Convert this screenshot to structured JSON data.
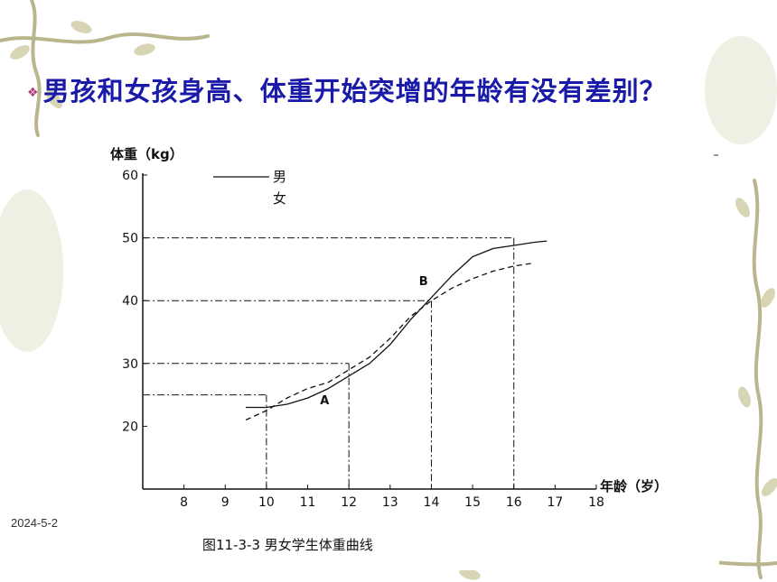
{
  "slide": {
    "question": "男孩和女孩身高、体重开始突增的年龄有没有差别？",
    "bullet_icon": "diamond-bullet-icon",
    "date": "2024-5-2"
  },
  "chart_data": {
    "type": "line",
    "title": "",
    "caption": "图11-3-3  男女学生体重曲线",
    "ylabel": "体重（kg）",
    "xlabel": "年龄（岁）",
    "xlim": [
      7,
      18
    ],
    "ylim": [
      10,
      60
    ],
    "x_ticks": [
      8,
      9,
      10,
      11,
      12,
      13,
      14,
      15,
      16,
      17,
      18
    ],
    "y_ticks": [
      20,
      30,
      40,
      50,
      60
    ],
    "legend": {
      "placement": "top-left",
      "entries": [
        "男",
        "女"
      ]
    },
    "series": [
      {
        "name": "男",
        "style": "solid",
        "points": [
          [
            9.5,
            23
          ],
          [
            10,
            23
          ],
          [
            10.5,
            23.5
          ],
          [
            11,
            24.5
          ],
          [
            11.5,
            26
          ],
          [
            12,
            28
          ],
          [
            12.5,
            30
          ],
          [
            13,
            33
          ],
          [
            13.5,
            37
          ],
          [
            14,
            40.5
          ],
          [
            14.5,
            44
          ],
          [
            15,
            47
          ],
          [
            15.5,
            48.3
          ],
          [
            16,
            48.8
          ],
          [
            16.5,
            49.3
          ],
          [
            16.8,
            49.5
          ]
        ]
      },
      {
        "name": "女",
        "style": "dashed",
        "points": [
          [
            9.5,
            21
          ],
          [
            10,
            22.5
          ],
          [
            10.5,
            24.5
          ],
          [
            11,
            26
          ],
          [
            11.5,
            27
          ],
          [
            12,
            29
          ],
          [
            12.5,
            31
          ],
          [
            13,
            34
          ],
          [
            13.5,
            37.5
          ],
          [
            14,
            40
          ],
          [
            14.5,
            42
          ],
          [
            15,
            43.5
          ],
          [
            15.5,
            44.7
          ],
          [
            16,
            45.5
          ],
          [
            16.5,
            46
          ]
        ]
      }
    ],
    "annotations": [
      {
        "label": "A",
        "x": 11.3,
        "y": 23.5
      },
      {
        "label": "B",
        "x": 13.7,
        "y": 42.5
      }
    ],
    "reference_lines": [
      {
        "x": 10,
        "y": 25
      },
      {
        "x": 12,
        "y": 30
      },
      {
        "x": 14,
        "y": 40
      },
      {
        "x": 16,
        "y": 50
      }
    ]
  }
}
